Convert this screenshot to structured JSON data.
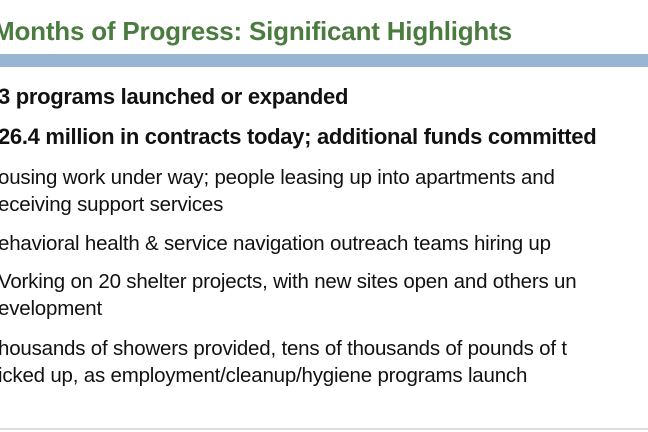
{
  "slide": {
    "title": "Months of Progress: Significant Highlights",
    "bullets": [
      {
        "lines": [
          "3 programs launched or expanded"
        ],
        "bold": true
      },
      {
        "lines": [
          "26.4 million in contracts today; additional funds committed"
        ],
        "bold": true
      },
      {
        "lines": [
          "ousing work under way; people leasing up into apartments and",
          "eceiving support services"
        ],
        "bold": false
      },
      {
        "lines": [
          "ehavioral health & service navigation outreach teams hiring up"
        ],
        "bold": false
      },
      {
        "lines": [
          "Vorking on 20 shelter projects, with new sites open and others un",
          "evelopment"
        ],
        "bold": false
      },
      {
        "lines": [
          "housands of showers provided, tens of thousands of pounds of t",
          "icked up, as employment/cleanup/hygiene programs launch"
        ],
        "bold": false
      }
    ]
  },
  "colors": {
    "title": "#4a7c3f",
    "header_bar": "#98b6d1",
    "text": "#111111"
  }
}
